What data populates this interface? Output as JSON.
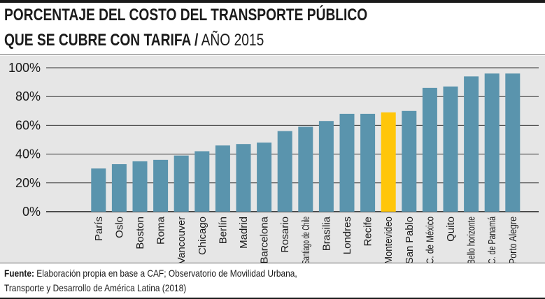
{
  "title": {
    "line1": "PORCENTAJE DEL COSTO DEL TRANSPORTE PÚBLICO",
    "line2_bold": "QUE SE CUBRE CON TARIFA /",
    "line2_normal": " AÑO 2015"
  },
  "source": {
    "label": "Fuente:",
    "text": " Elaboración propia en base a CAF; Observatorio de Movilidad Urbana, Transporte y Desarrollo de América Latina (2018)"
  },
  "colors": {
    "bar": "#5a94ad",
    "highlight": "#ffc60a",
    "panel": "#e6e6e6"
  },
  "chart_data": {
    "type": "bar",
    "title": "PORCENTAJE DEL COSTO DEL TRANSPORTE PÚBLICO QUE SE CUBRE CON TARIFA / AÑO 2015",
    "xlabel": "",
    "ylabel": "",
    "ylim": [
      0,
      100
    ],
    "yticks": [
      "0%",
      "20%",
      "40%",
      "60%",
      "80%",
      "100%"
    ],
    "ytick_values": [
      0,
      20,
      40,
      60,
      80,
      100
    ],
    "grid": true,
    "highlight": "Montevideo",
    "categories": [
      "París",
      "Oslo",
      "Boston",
      "Roma",
      "Vancouver",
      "Chicago",
      "Berlín",
      "Madrid",
      "Barcelona",
      "Rosario",
      "Santiago de Chile",
      "Brasilia",
      "Londres",
      "Recife",
      "Montevideo",
      "San Pablo",
      "C. de México",
      "Quito",
      "Bello horizonte",
      "C. de Panamá",
      "Porto Alegre"
    ],
    "values": [
      30,
      33,
      35,
      36,
      39,
      42,
      46,
      47,
      48,
      56,
      59,
      63,
      68,
      68,
      69,
      70,
      86,
      87,
      94,
      96,
      96
    ]
  }
}
